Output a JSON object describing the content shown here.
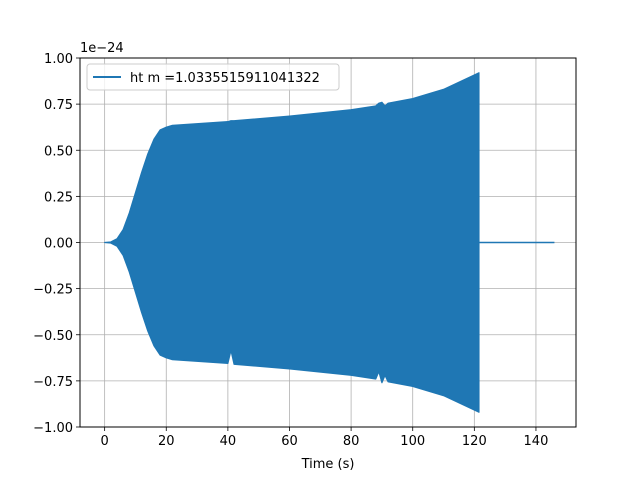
{
  "chart_data": {
    "type": "line",
    "title": "",
    "xlabel": "Time (s)",
    "ylabel": "",
    "y_offset_label": "1e−24",
    "xlim": [
      -8,
      153
    ],
    "ylim": [
      -1.0,
      1.0
    ],
    "xticks": [
      0,
      20,
      40,
      60,
      80,
      100,
      120,
      140
    ],
    "xtick_labels": [
      "0",
      "20",
      "40",
      "60",
      "80",
      "100",
      "120",
      "140"
    ],
    "yticks": [
      1.0,
      0.75,
      0.5,
      0.25,
      0.0,
      -0.25,
      -0.5,
      -0.75,
      -1.0
    ],
    "ytick_labels": [
      "1.00",
      "0.75",
      "0.50",
      "0.25",
      "0.00",
      "−0.25",
      "−0.50",
      "−0.75",
      "−1.00"
    ],
    "grid": true,
    "legend_position": "upper-left",
    "series": [
      {
        "name": "ht m =1.0335515911041322",
        "color": "#1f77b4",
        "envelope_upper": {
          "x": [
            0,
            2,
            4,
            6,
            8,
            10,
            12,
            14,
            16,
            18,
            20,
            22,
            40,
            41,
            42,
            60,
            80,
            88,
            89,
            90,
            91,
            92,
            100,
            110,
            121.5
          ],
          "y": [
            0.0,
            0.003,
            0.02,
            0.07,
            0.16,
            0.27,
            0.38,
            0.48,
            0.56,
            0.61,
            0.625,
            0.635,
            0.655,
            0.66,
            0.66,
            0.685,
            0.72,
            0.74,
            0.755,
            0.76,
            0.74,
            0.755,
            0.78,
            0.83,
            0.92
          ]
        },
        "envelope_lower": {
          "x": [
            0,
            2,
            4,
            6,
            8,
            10,
            12,
            14,
            16,
            18,
            20,
            22,
            40,
            41,
            42,
            60,
            80,
            88,
            89,
            90,
            91,
            92,
            100,
            110,
            121.5
          ],
          "y": [
            0.0,
            -0.003,
            -0.02,
            -0.07,
            -0.16,
            -0.27,
            -0.38,
            -0.48,
            -0.56,
            -0.61,
            -0.625,
            -0.635,
            -0.655,
            -0.585,
            -0.66,
            -0.685,
            -0.72,
            -0.74,
            -0.7,
            -0.76,
            -0.72,
            -0.755,
            -0.78,
            -0.83,
            -0.92
          ]
        },
        "tail": {
          "x": [
            121.5,
            146
          ],
          "y": [
            0.0,
            0.0
          ]
        }
      }
    ]
  }
}
